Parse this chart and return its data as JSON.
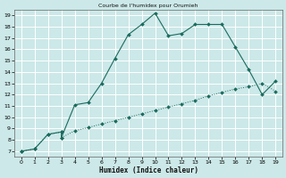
{
  "title": "Courbe de l'humidex pour Orumieh",
  "xlabel": "Humidex (Indice chaleur)",
  "xlim": [
    -0.5,
    19.5
  ],
  "ylim": [
    6.5,
    19.5
  ],
  "xticks": [
    0,
    1,
    2,
    3,
    4,
    5,
    6,
    7,
    8,
    9,
    10,
    11,
    12,
    13,
    14,
    15,
    16,
    17,
    18,
    19
  ],
  "yticks": [
    7,
    8,
    9,
    10,
    11,
    12,
    13,
    14,
    15,
    16,
    17,
    18,
    19
  ],
  "bg_color": "#cce8e8",
  "grid_color": "#ffffff",
  "line_color": "#1a6b5e",
  "line1_x": [
    0,
    1,
    2,
    3,
    3,
    4,
    5,
    6,
    7,
    8,
    9,
    10,
    11,
    12,
    13,
    14,
    15,
    16,
    17,
    18,
    19
  ],
  "line1_y": [
    7.0,
    7.2,
    8.5,
    8.7,
    8.2,
    11.1,
    11.3,
    13.0,
    15.2,
    17.3,
    18.2,
    19.2,
    17.2,
    17.4,
    18.2,
    18.2,
    18.2,
    16.2,
    14.2,
    12.0,
    13.2
  ],
  "line2_x": [
    0,
    1,
    2,
    3,
    3,
    4,
    5,
    6,
    7,
    8,
    9,
    10,
    11,
    12,
    13,
    14,
    15,
    16,
    17,
    18,
    19
  ],
  "line2_y": [
    7.0,
    7.2,
    8.5,
    8.7,
    8.2,
    8.8,
    9.1,
    9.4,
    9.7,
    10.0,
    10.3,
    10.6,
    10.9,
    11.2,
    11.5,
    11.9,
    12.2,
    12.5,
    12.7,
    13.0,
    12.3
  ]
}
